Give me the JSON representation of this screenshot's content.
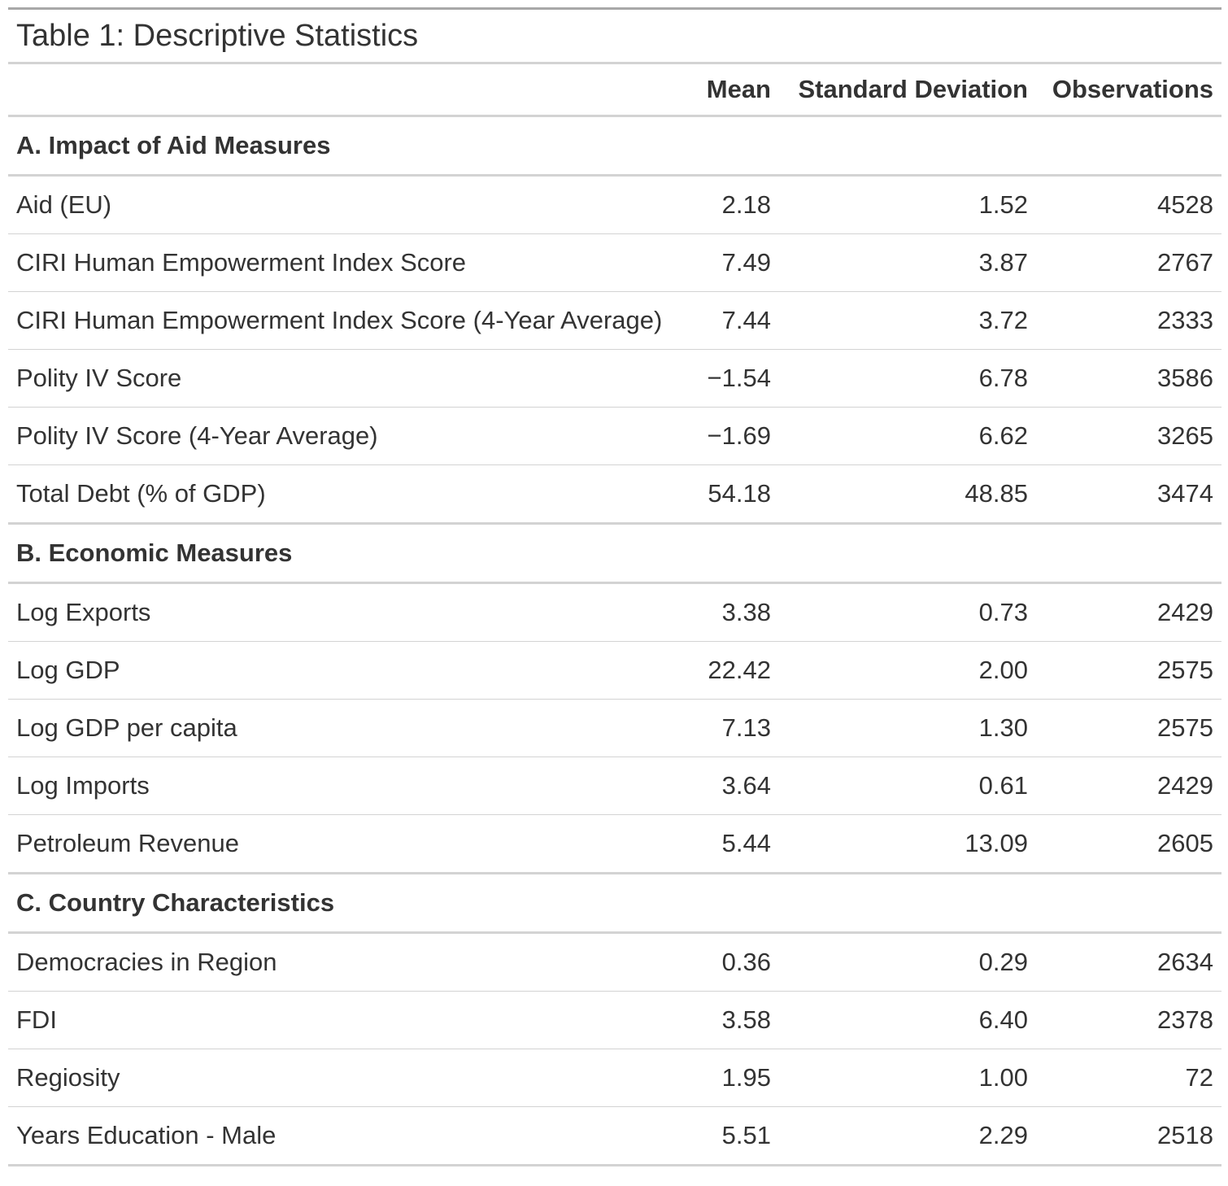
{
  "table": {
    "title": "Table 1: Descriptive Statistics",
    "columns": [
      "",
      "Mean",
      "Standard Deviation",
      "Observations"
    ],
    "groups": [
      {
        "label": "A. Impact of Aid Measures",
        "rows": [
          {
            "label": "Aid (EU)",
            "mean": "2.18",
            "sd": "1.52",
            "obs": "4528"
          },
          {
            "label": "CIRI Human Empowerment Index Score",
            "mean": "7.49",
            "sd": "3.87",
            "obs": "2767"
          },
          {
            "label": "CIRI Human Empowerment Index Score (4-Year Average)",
            "mean": "7.44",
            "sd": "3.72",
            "obs": "2333"
          },
          {
            "label": "Polity IV Score",
            "mean": "−1.54",
            "sd": "6.78",
            "obs": "3586"
          },
          {
            "label": "Polity IV Score (4-Year Average)",
            "mean": "−1.69",
            "sd": "6.62",
            "obs": "3265"
          },
          {
            "label": "Total Debt (% of GDP)",
            "mean": "54.18",
            "sd": "48.85",
            "obs": "3474"
          }
        ]
      },
      {
        "label": "B. Economic Measures",
        "rows": [
          {
            "label": "Log Exports",
            "mean": "3.38",
            "sd": "0.73",
            "obs": "2429"
          },
          {
            "label": "Log GDP",
            "mean": "22.42",
            "sd": "2.00",
            "obs": "2575"
          },
          {
            "label": "Log GDP per capita",
            "mean": "7.13",
            "sd": "1.30",
            "obs": "2575"
          },
          {
            "label": "Log Imports",
            "mean": "3.64",
            "sd": "0.61",
            "obs": "2429"
          },
          {
            "label": "Petroleum Revenue",
            "mean": "5.44",
            "sd": "13.09",
            "obs": "2605"
          }
        ]
      },
      {
        "label": "C. Country Characteristics",
        "rows": [
          {
            "label": "Democracies in Region",
            "mean": "0.36",
            "sd": "0.29",
            "obs": "2634"
          },
          {
            "label": "FDI",
            "mean": "3.58",
            "sd": "6.40",
            "obs": "2378"
          },
          {
            "label": "Regiosity",
            "mean": "1.95",
            "sd": "1.00",
            "obs": "72"
          },
          {
            "label": "Years Education - Male",
            "mean": "5.51",
            "sd": "2.29",
            "obs": "2518"
          }
        ]
      }
    ]
  }
}
